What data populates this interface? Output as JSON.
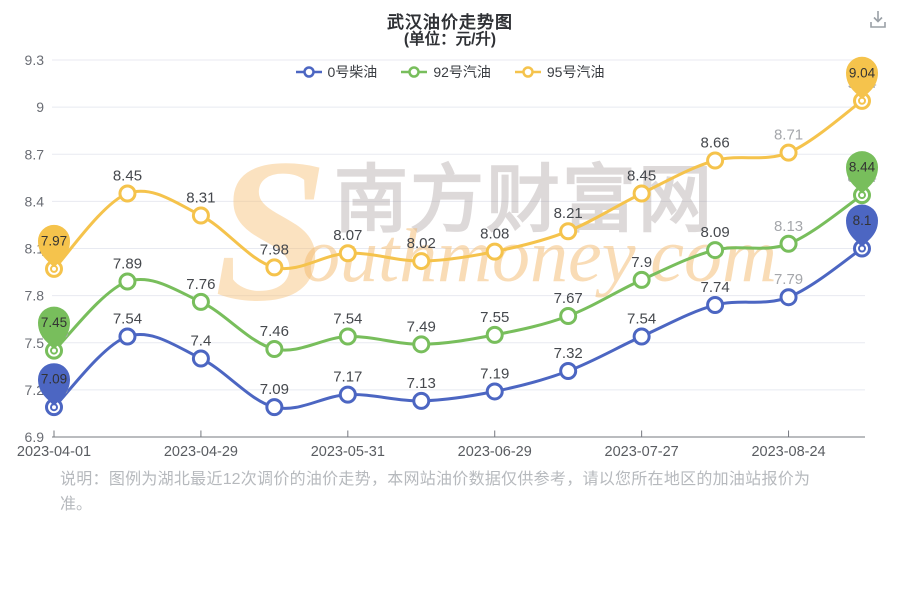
{
  "header": {
    "title": "武汉油价走势图",
    "subtitle": "(单位：元/升)"
  },
  "toolbox": {
    "save_image_icon": "download-icon"
  },
  "watermark": {
    "brand_initial": "S",
    "brand_rest": "outhmoney.com",
    "brand_cjk": "南方财富网"
  },
  "note": {
    "text": "说明：图例为湖北最近12次调价的油价走势，本网站油价数据仅供参考，请以您所在地区的加油站报价为准。"
  },
  "chart_data": {
    "type": "line",
    "title": "武汉油价走势图",
    "subtitle": "(单位：元/升)",
    "legend_position": "top",
    "grid": true,
    "smooth": true,
    "ylim": [
      6.9,
      9.3
    ],
    "y_ticks": [
      "9.3",
      "9",
      "8.7",
      "8.4",
      "8.1",
      "7.8",
      "7.5",
      "7.2",
      "6.9"
    ],
    "x_ticks": [
      "2023-04-01",
      "2023-04-29",
      "2023-05-31",
      "2023-06-29",
      "2023-07-27",
      "2023-08-24"
    ],
    "x_tick_indices": [
      0,
      2,
      4,
      6,
      8,
      10
    ],
    "series": [
      {
        "name": "0号柴油",
        "color": "#4c66c2",
        "values": [
          7.09,
          7.54,
          7.4,
          7.09,
          7.17,
          7.13,
          7.19,
          7.32,
          7.54,
          7.74,
          7.79,
          8.1
        ]
      },
      {
        "name": "92号汽油",
        "color": "#78be5c",
        "values": [
          7.45,
          7.89,
          7.76,
          7.46,
          7.54,
          7.49,
          7.55,
          7.67,
          7.9,
          8.09,
          8.13,
          8.44
        ]
      },
      {
        "name": "95号汽油",
        "color": "#f5c34c",
        "values": [
          7.97,
          8.45,
          8.31,
          7.98,
          8.07,
          8.02,
          8.08,
          8.21,
          8.45,
          8.66,
          8.71,
          9.04
        ]
      }
    ],
    "grey_label_indices": [
      0,
      10,
      11
    ],
    "pin_indices": [
      0,
      11
    ],
    "colors": {
      "grid_line": "#e8eaf1",
      "axis_line": "#75787f",
      "y_tick_label": "#6a6d74",
      "x_tick_label": "#595c61",
      "data_label_dark": "#45484d",
      "data_label_grey": "#a5a7ab",
      "pin_text": "#333333"
    }
  }
}
